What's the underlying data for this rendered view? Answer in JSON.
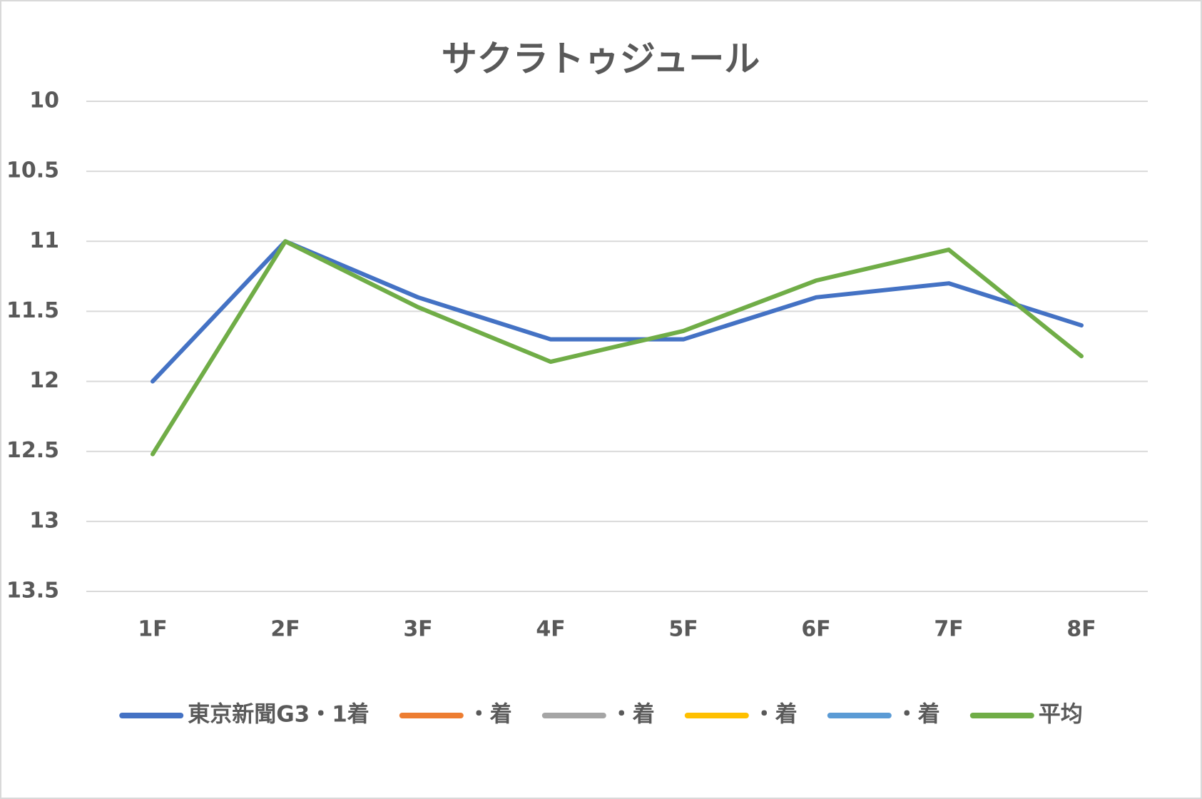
{
  "chart_data": {
    "type": "line",
    "title": "サクラトゥジュール",
    "categories": [
      "1F",
      "2F",
      "3F",
      "4F",
      "5F",
      "6F",
      "7F",
      "8F"
    ],
    "series": [
      {
        "name": "東京新聞G3・1着",
        "color": "#4472c4",
        "values": [
          12,
          11,
          11.4,
          11.7,
          11.7,
          11.4,
          11.3,
          11.6
        ]
      },
      {
        "name": "・着",
        "color": "#ed7d31",
        "values": [
          null,
          null,
          null,
          null,
          null,
          null,
          null,
          null
        ]
      },
      {
        "name": "・着",
        "color": "#a5a5a5",
        "values": [
          null,
          null,
          null,
          null,
          null,
          null,
          null,
          null
        ]
      },
      {
        "name": "・着",
        "color": "#ffc000",
        "values": [
          null,
          null,
          null,
          null,
          null,
          null,
          null,
          null
        ]
      },
      {
        "name": "・着",
        "color": "#5b9bd5",
        "values": [
          null,
          null,
          null,
          null,
          null,
          null,
          null,
          null
        ]
      },
      {
        "name": "平均",
        "color": "#70ad47",
        "values": [
          12.52,
          11,
          11.47,
          11.86,
          11.64,
          11.28,
          11.06,
          11.82
        ]
      }
    ],
    "ylim": [
      10,
      13.5
    ],
    "yticks": [
      10,
      10.5,
      11,
      11.5,
      12,
      12.5,
      13,
      13.5
    ],
    "y_reversed": true,
    "grid": true,
    "legend": "bottom"
  }
}
